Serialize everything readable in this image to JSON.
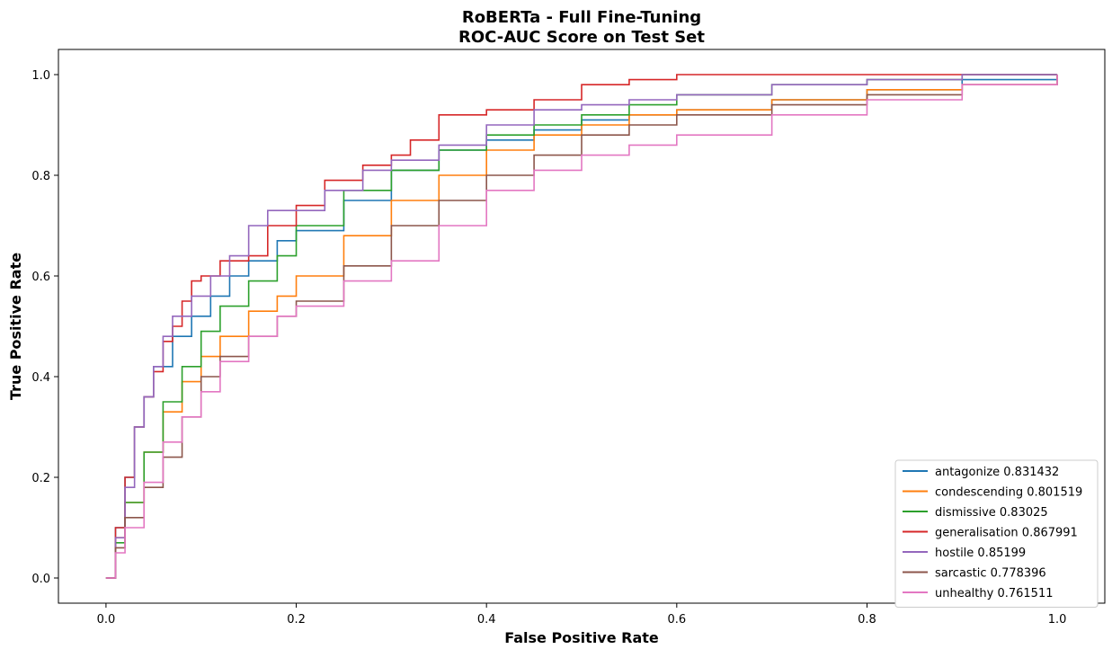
{
  "chart_data": {
    "type": "line",
    "title": "RoBERTa - Full Fine-Tuning",
    "subtitle": "ROC-AUC Score on Test Set",
    "xlabel": "False Positive Rate",
    "ylabel": "True Positive Rate",
    "xlim": [
      -0.05,
      1.05
    ],
    "ylim": [
      -0.05,
      1.05
    ],
    "xticks": [
      0.0,
      0.2,
      0.4,
      0.6,
      0.8,
      1.0
    ],
    "yticks": [
      0.0,
      0.2,
      0.4,
      0.6,
      0.8,
      1.0
    ],
    "xtick_labels": [
      "0.0",
      "0.2",
      "0.4",
      "0.6",
      "0.8",
      "1.0"
    ],
    "ytick_labels": [
      "0.0",
      "0.2",
      "0.4",
      "0.6",
      "0.8",
      "1.0"
    ],
    "grid": false,
    "legend_position": "lower-right",
    "series": [
      {
        "name": "antagonize 0.831432",
        "color": "#1f77b4",
        "x": [
          0,
          0.01,
          0.02,
          0.03,
          0.04,
          0.05,
          0.07,
          0.09,
          0.11,
          0.13,
          0.15,
          0.18,
          0.2,
          0.25,
          0.3,
          0.35,
          0.4,
          0.45,
          0.5,
          0.55,
          0.6,
          0.7,
          0.8,
          0.9,
          1.0
        ],
        "y": [
          0,
          0.1,
          0.2,
          0.3,
          0.36,
          0.42,
          0.48,
          0.52,
          0.56,
          0.6,
          0.63,
          0.67,
          0.69,
          0.75,
          0.81,
          0.85,
          0.87,
          0.89,
          0.91,
          0.92,
          0.93,
          0.95,
          0.97,
          0.99,
          1.0
        ]
      },
      {
        "name": "condescending 0.801519",
        "color": "#ff7f0e",
        "x": [
          0,
          0.01,
          0.02,
          0.04,
          0.06,
          0.08,
          0.1,
          0.12,
          0.15,
          0.18,
          0.2,
          0.25,
          0.3,
          0.35,
          0.4,
          0.45,
          0.5,
          0.55,
          0.6,
          0.7,
          0.8,
          0.9,
          1.0
        ],
        "y": [
          0,
          0.08,
          0.15,
          0.25,
          0.33,
          0.39,
          0.44,
          0.48,
          0.53,
          0.56,
          0.6,
          0.68,
          0.75,
          0.8,
          0.85,
          0.88,
          0.9,
          0.92,
          0.93,
          0.95,
          0.97,
          0.98,
          1.0
        ]
      },
      {
        "name": "dismissive 0.83025",
        "color": "#2ca02c",
        "x": [
          0,
          0.01,
          0.02,
          0.04,
          0.06,
          0.08,
          0.1,
          0.12,
          0.15,
          0.18,
          0.2,
          0.25,
          0.3,
          0.35,
          0.4,
          0.45,
          0.5,
          0.55,
          0.6,
          0.7,
          0.8,
          0.9,
          1.0
        ],
        "y": [
          0,
          0.07,
          0.15,
          0.25,
          0.35,
          0.42,
          0.49,
          0.54,
          0.59,
          0.64,
          0.7,
          0.77,
          0.81,
          0.85,
          0.88,
          0.9,
          0.92,
          0.94,
          0.96,
          0.98,
          0.99,
          1.0,
          1.0
        ]
      },
      {
        "name": "generalisation 0.867991",
        "color": "#d62728",
        "x": [
          0,
          0.01,
          0.02,
          0.03,
          0.04,
          0.05,
          0.06,
          0.07,
          0.08,
          0.09,
          0.1,
          0.12,
          0.15,
          0.17,
          0.2,
          0.23,
          0.27,
          0.3,
          0.32,
          0.35,
          0.4,
          0.45,
          0.5,
          0.55,
          0.6,
          0.7,
          0.8,
          0.9,
          1.0
        ],
        "y": [
          0,
          0.1,
          0.2,
          0.3,
          0.36,
          0.41,
          0.47,
          0.5,
          0.55,
          0.59,
          0.6,
          0.63,
          0.64,
          0.7,
          0.74,
          0.79,
          0.82,
          0.84,
          0.87,
          0.92,
          0.93,
          0.95,
          0.98,
          0.99,
          1.0,
          1.0,
          1.0,
          1.0,
          1.0
        ]
      },
      {
        "name": "hostile 0.85199",
        "color": "#9467bd",
        "x": [
          0,
          0.01,
          0.02,
          0.03,
          0.04,
          0.05,
          0.06,
          0.07,
          0.09,
          0.11,
          0.13,
          0.15,
          0.17,
          0.2,
          0.23,
          0.27,
          0.3,
          0.35,
          0.4,
          0.45,
          0.5,
          0.55,
          0.6,
          0.7,
          0.8,
          0.9,
          1.0
        ],
        "y": [
          0,
          0.08,
          0.18,
          0.3,
          0.36,
          0.42,
          0.48,
          0.52,
          0.56,
          0.6,
          0.64,
          0.7,
          0.73,
          0.73,
          0.77,
          0.81,
          0.83,
          0.86,
          0.9,
          0.93,
          0.94,
          0.95,
          0.96,
          0.98,
          0.99,
          1.0,
          1.0
        ]
      },
      {
        "name": "sarcastic 0.778396",
        "color": "#8c564b",
        "x": [
          0,
          0.01,
          0.02,
          0.04,
          0.06,
          0.08,
          0.1,
          0.12,
          0.15,
          0.18,
          0.2,
          0.25,
          0.3,
          0.35,
          0.4,
          0.45,
          0.5,
          0.55,
          0.6,
          0.7,
          0.8,
          0.9,
          1.0
        ],
        "y": [
          0,
          0.06,
          0.12,
          0.18,
          0.24,
          0.32,
          0.4,
          0.44,
          0.48,
          0.52,
          0.55,
          0.62,
          0.7,
          0.75,
          0.8,
          0.84,
          0.88,
          0.9,
          0.92,
          0.94,
          0.96,
          0.98,
          1.0
        ]
      },
      {
        "name": "unhealthy 0.761511",
        "color": "#e377c2",
        "x": [
          0,
          0.01,
          0.02,
          0.04,
          0.06,
          0.08,
          0.1,
          0.12,
          0.15,
          0.18,
          0.2,
          0.25,
          0.3,
          0.35,
          0.4,
          0.45,
          0.5,
          0.55,
          0.6,
          0.7,
          0.8,
          0.9,
          1.0
        ],
        "y": [
          0,
          0.05,
          0.1,
          0.19,
          0.27,
          0.32,
          0.37,
          0.43,
          0.48,
          0.52,
          0.54,
          0.59,
          0.63,
          0.7,
          0.77,
          0.81,
          0.84,
          0.86,
          0.88,
          0.92,
          0.95,
          0.98,
          1.0
        ]
      }
    ]
  }
}
